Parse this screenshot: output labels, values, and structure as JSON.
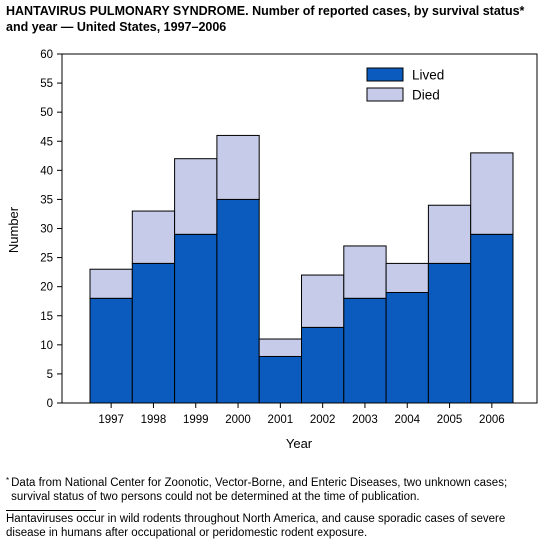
{
  "title": "HANTAVIRUS PULMONARY SYNDROME. Number of reported cases, by survival status* and year — United States, 1997–2006",
  "footnote": {
    "marker": "*",
    "text": "Data from National Center for Zoonotic, Vector-Borne, and Enteric Diseases, two unknown cases; survival status of two persons could not be determined at the time of publication."
  },
  "caption": "Hantaviruses occur in wild rodents throughout North America, and cause sporadic cases of severe disease in humans after occupational or peridomestic rodent exposure.",
  "colors": {
    "lived": "#0a5bbd",
    "died": "#c6cbea",
    "outline": "#000000"
  },
  "chart_data": {
    "type": "bar",
    "stacked": true,
    "categories": [
      "1997",
      "1998",
      "1999",
      "2000",
      "2001",
      "2002",
      "2003",
      "2004",
      "2005",
      "2006"
    ],
    "series": [
      {
        "name": "Lived",
        "values": [
          18,
          24,
          29,
          35,
          8,
          13,
          18,
          19,
          24,
          29
        ]
      },
      {
        "name": "Died",
        "values": [
          5,
          9,
          13,
          11,
          3,
          9,
          9,
          5,
          10,
          14
        ]
      }
    ],
    "xlabel": "Year",
    "ylabel": "Number",
    "ylim": [
      0,
      60
    ],
    "yticks": [
      0,
      5,
      10,
      15,
      20,
      25,
      30,
      35,
      40,
      45,
      50,
      55,
      60
    ],
    "grid": false,
    "legend_position": "top-right"
  }
}
